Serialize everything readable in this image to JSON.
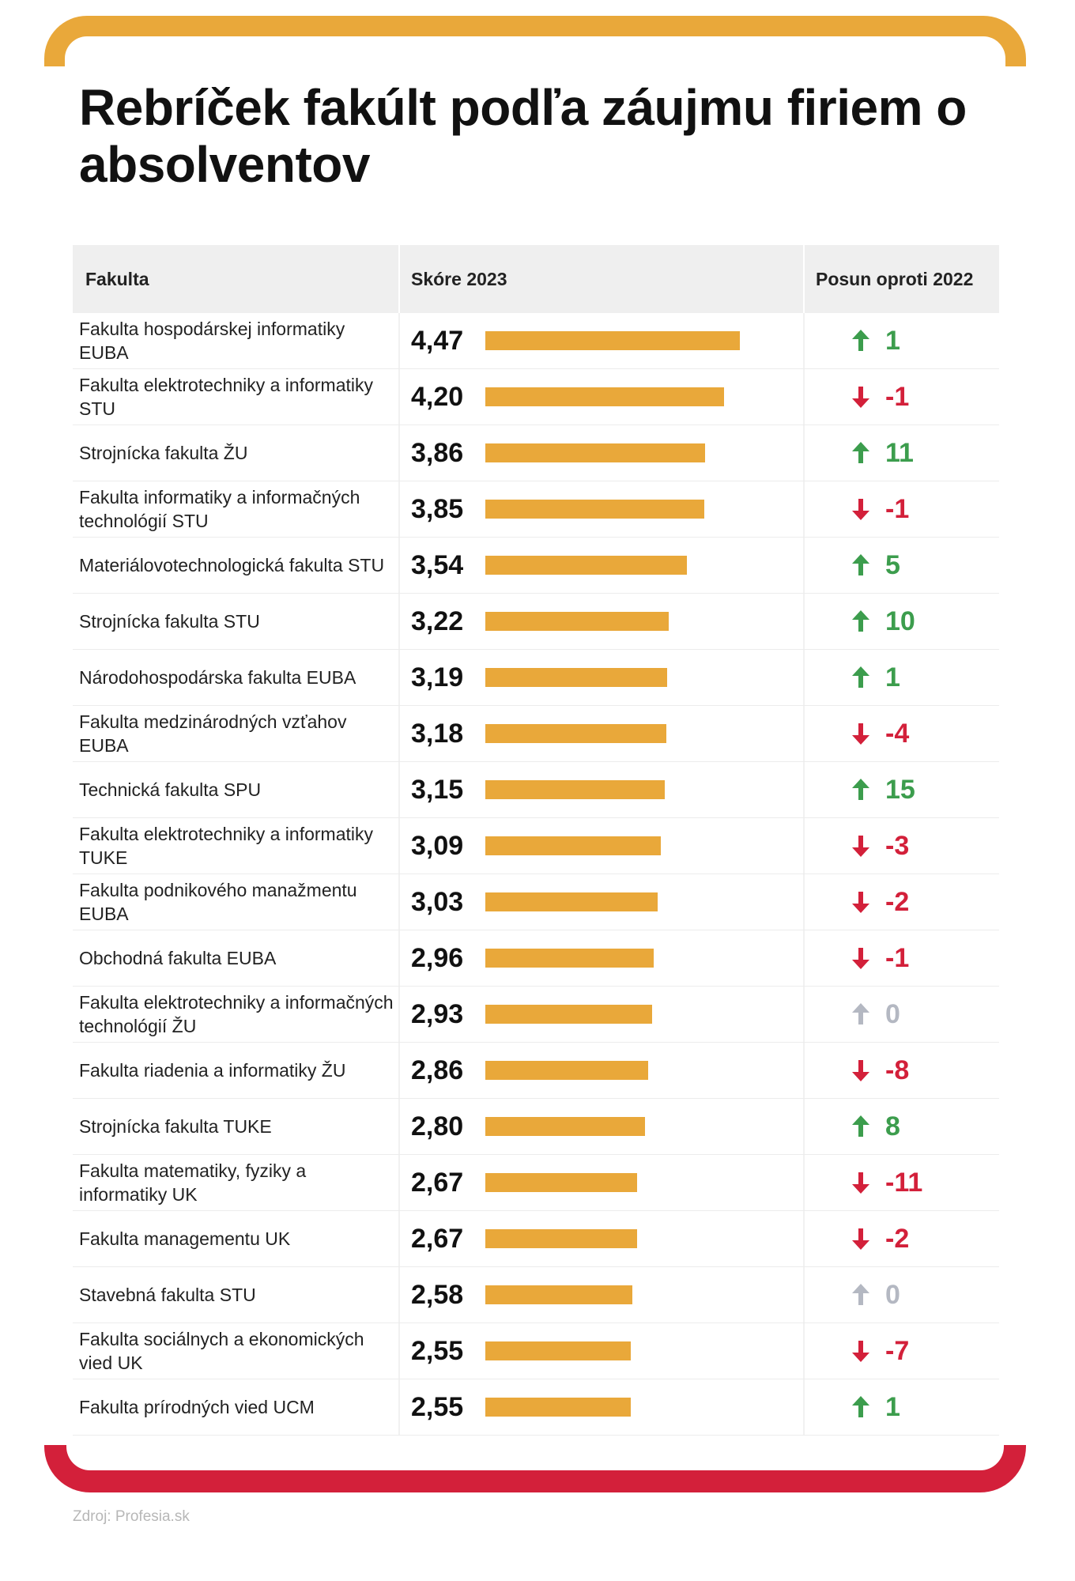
{
  "title": "Rebríček fakúlt podľa záujmu firiem o absolventov",
  "colors": {
    "bar": "#e9a83a",
    "up": "#3c9d4d",
    "down": "#d3203a",
    "zero": "#b4b8c2"
  },
  "chart_data": {
    "type": "bar",
    "title": "Rebríček fakúlt podľa záujmu firiem o absolventov",
    "columns": [
      "Fakulta",
      "Skóre 2023",
      "Posun oproti 2022"
    ],
    "xlim": [
      0,
      5
    ],
    "rows": [
      {
        "name": "Fakulta hospodárskej informatiky EUBA",
        "score": "4,47",
        "value": 4.47,
        "change": "1",
        "dir": "up"
      },
      {
        "name": "Fakulta elektrotechniky a informatiky STU",
        "score": "4,20",
        "value": 4.2,
        "change": "-1",
        "dir": "down"
      },
      {
        "name": "Strojnícka fakulta ŽU",
        "score": "3,86",
        "value": 3.86,
        "change": "11",
        "dir": "up"
      },
      {
        "name": "Fakulta informatiky a informačných technológií STU",
        "score": "3,85",
        "value": 3.85,
        "change": "-1",
        "dir": "down"
      },
      {
        "name": "Materiálovotechnologická fakulta STU",
        "score": "3,54",
        "value": 3.54,
        "change": "5",
        "dir": "up"
      },
      {
        "name": "Strojnícka fakulta STU",
        "score": "3,22",
        "value": 3.22,
        "change": "10",
        "dir": "up"
      },
      {
        "name": "Národohospodárska fakulta EUBA",
        "score": "3,19",
        "value": 3.19,
        "change": "1",
        "dir": "up"
      },
      {
        "name": "Fakulta medzinárodných vzťahov EUBA",
        "score": "3,18",
        "value": 3.18,
        "change": "-4",
        "dir": "down"
      },
      {
        "name": "Technická fakulta SPU",
        "score": "3,15",
        "value": 3.15,
        "change": "15",
        "dir": "up"
      },
      {
        "name": "Fakulta elektrotechniky a informatiky TUKE",
        "score": "3,09",
        "value": 3.09,
        "change": "-3",
        "dir": "down"
      },
      {
        "name": "Fakulta podnikového manažmentu EUBA",
        "score": "3,03",
        "value": 3.03,
        "change": "-2",
        "dir": "down"
      },
      {
        "name": "Obchodná fakulta EUBA",
        "score": "2,96",
        "value": 2.96,
        "change": "-1",
        "dir": "down"
      },
      {
        "name": "Fakulta elektrotechniky a informačných technológií ŽU",
        "score": "2,93",
        "value": 2.93,
        "change": "0",
        "dir": "zero"
      },
      {
        "name": "Fakulta riadenia a informatiky ŽU",
        "score": "2,86",
        "value": 2.86,
        "change": "-8",
        "dir": "down"
      },
      {
        "name": "Strojnícka fakulta TUKE",
        "score": "2,80",
        "value": 2.8,
        "change": "8",
        "dir": "up"
      },
      {
        "name": "Fakulta matematiky, fyziky a informatiky UK",
        "score": "2,67",
        "value": 2.67,
        "change": "-11",
        "dir": "down"
      },
      {
        "name": "Fakulta managementu UK",
        "score": "2,67",
        "value": 2.67,
        "change": "-2",
        "dir": "down"
      },
      {
        "name": "Stavebná fakulta STU",
        "score": "2,58",
        "value": 2.58,
        "change": "0",
        "dir": "zero"
      },
      {
        "name": "Fakulta sociálnych a ekonomických vied UK",
        "score": "2,55",
        "value": 2.55,
        "change": "-7",
        "dir": "down"
      },
      {
        "name": "Fakulta prírodných vied UCM",
        "score": "2,55",
        "value": 2.55,
        "change": "1",
        "dir": "up"
      }
    ]
  },
  "source": "Zdroj: Profesia.sk"
}
